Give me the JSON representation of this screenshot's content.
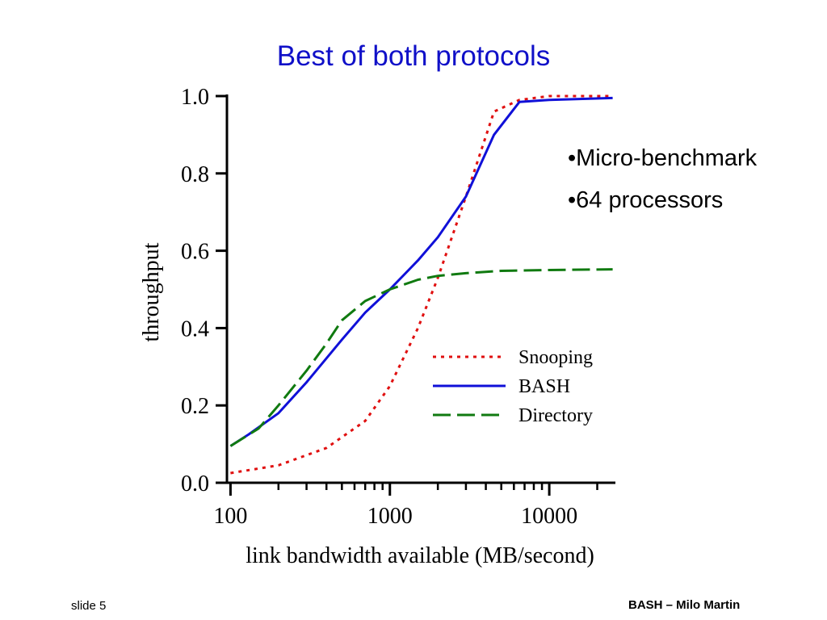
{
  "slide": {
    "title": "Best of both protocols",
    "bullets": [
      "•Micro-benchmark",
      "•64 processors"
    ],
    "footer_left": "slide 5",
    "footer_right": "BASH – Milo Martin"
  },
  "chart_data": {
    "type": "line",
    "title": "",
    "xlabel": "link bandwidth available (MB/second)",
    "ylabel": "throughput",
    "x_scale": "log",
    "xlim": [
      95,
      26000
    ],
    "ylim": [
      0,
      1.0
    ],
    "x_ticks": [
      100,
      1000,
      10000
    ],
    "x_tick_labels": [
      "100",
      "1000",
      "10000"
    ],
    "y_ticks": [
      0,
      0.2,
      0.4,
      0.6,
      0.8,
      1.0
    ],
    "y_tick_labels": [
      "0.0",
      "0.2",
      "0.4",
      "0.6",
      "0.8",
      "1.0"
    ],
    "grid": false,
    "legend": "center-right",
    "series": [
      {
        "name": "Snooping",
        "color": "#e01010",
        "style": "dotted",
        "points": [
          [
            100,
            0.025
          ],
          [
            200,
            0.045
          ],
          [
            400,
            0.09
          ],
          [
            700,
            0.16
          ],
          [
            1000,
            0.25
          ],
          [
            1500,
            0.4
          ],
          [
            2000,
            0.53
          ],
          [
            3000,
            0.74
          ],
          [
            4500,
            0.96
          ],
          [
            6500,
            0.99
          ],
          [
            10000,
            1.0
          ],
          [
            25000,
            1.0
          ]
        ]
      },
      {
        "name": "BASH",
        "color": "#1010d8",
        "style": "solid",
        "points": [
          [
            100,
            0.095
          ],
          [
            130,
            0.125
          ],
          [
            200,
            0.18
          ],
          [
            300,
            0.26
          ],
          [
            500,
            0.37
          ],
          [
            700,
            0.44
          ],
          [
            1000,
            0.5
          ],
          [
            1500,
            0.575
          ],
          [
            2000,
            0.635
          ],
          [
            3000,
            0.74
          ],
          [
            4500,
            0.9
          ],
          [
            6500,
            0.985
          ],
          [
            10000,
            0.99
          ],
          [
            25000,
            0.995
          ]
        ]
      },
      {
        "name": "Directory",
        "color": "#107a10",
        "style": "dashed",
        "points": [
          [
            100,
            0.095
          ],
          [
            150,
            0.14
          ],
          [
            200,
            0.2
          ],
          [
            300,
            0.29
          ],
          [
            400,
            0.36
          ],
          [
            500,
            0.42
          ],
          [
            700,
            0.47
          ],
          [
            1000,
            0.5
          ],
          [
            1500,
            0.525
          ],
          [
            2000,
            0.535
          ],
          [
            3000,
            0.542
          ],
          [
            5000,
            0.548
          ],
          [
            10000,
            0.55
          ],
          [
            25000,
            0.552
          ]
        ]
      }
    ]
  }
}
